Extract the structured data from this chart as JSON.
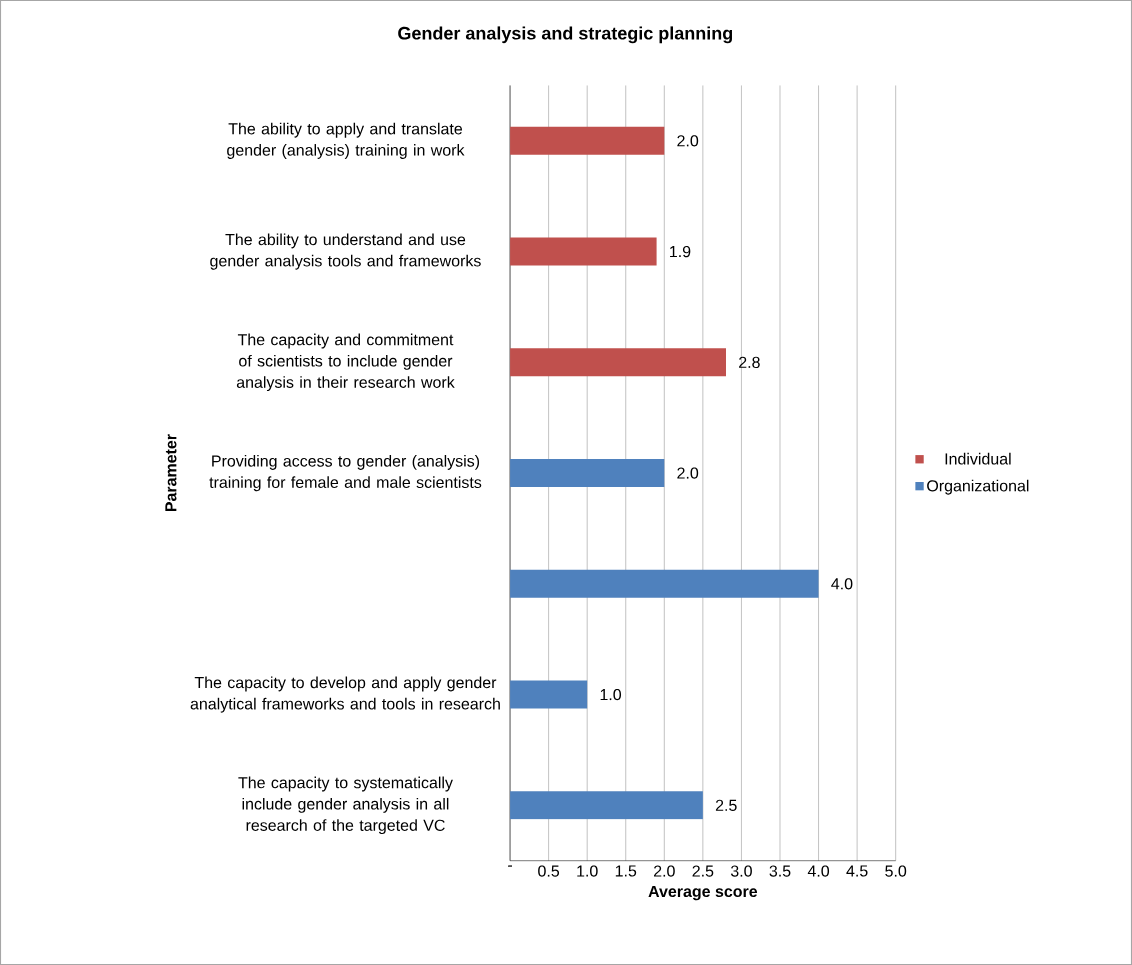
{
  "chart_data": {
    "type": "bar",
    "orientation": "horizontal",
    "title": "Gender analysis and strategic planning",
    "xlabel": "Average score",
    "ylabel": "Parameter",
    "categories": [
      "The ability to apply and translate gender (analysis) training in work",
      "The ability to understand and use gender analysis tools and frameworks",
      "The capacity and commitment of scientists to include gender analysis in their research work",
      "Providing access to gender (analysis) training for female and male scientists",
      null,
      "The capacity to develop and apply gender analytical frameworks and tools in research",
      "The capacity to systematically include gender analysis in all research of the targeted VC"
    ],
    "series": [
      {
        "name": "Individual",
        "color": "#c0504d",
        "values": [
          2.0,
          1.9,
          2.8,
          null,
          null,
          null,
          null
        ],
        "value_labels": [
          "2.0",
          "1.9",
          "2.8",
          null,
          null,
          null,
          null
        ]
      },
      {
        "name": "Organizational",
        "color": "#4f81bd",
        "values": [
          null,
          null,
          null,
          2.0,
          4.0,
          1.0,
          2.5
        ],
        "value_labels": [
          null,
          null,
          null,
          "2.0",
          "4.0",
          "1.0",
          "2.5"
        ]
      }
    ],
    "xlim": [
      0,
      5
    ],
    "xticks": [
      {
        "value": 0,
        "label": "-"
      },
      {
        "value": 0.5,
        "label": "0.5"
      },
      {
        "value": 1,
        "label": "1.0"
      },
      {
        "value": 1.5,
        "label": "1.5"
      },
      {
        "value": 2,
        "label": "2.0"
      },
      {
        "value": 2.5,
        "label": "2.5"
      },
      {
        "value": 3,
        "label": "3.0"
      },
      {
        "value": 3.5,
        "label": "3.5"
      },
      {
        "value": 4,
        "label": "4.0"
      },
      {
        "value": 4.5,
        "label": "4.5"
      },
      {
        "value": 5,
        "label": "5.0"
      }
    ],
    "grid": "x",
    "legend": "right"
  }
}
